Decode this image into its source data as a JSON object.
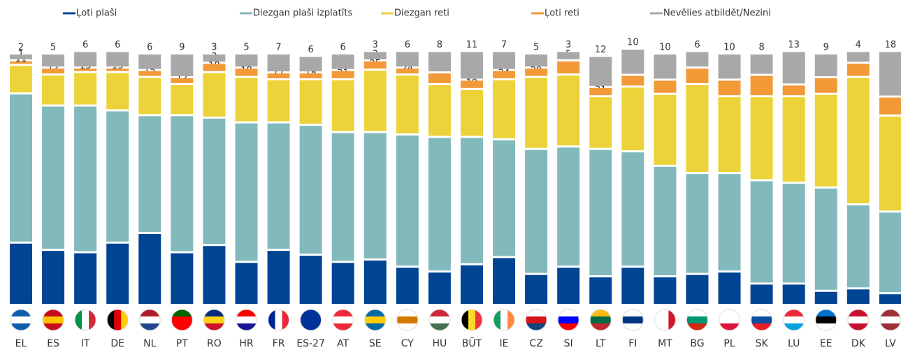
{
  "chart_data": {
    "type": "stacked_bar",
    "categories": [
      "EL",
      "ES",
      "IT",
      "DE",
      "NL",
      "PT",
      "RO",
      "HR",
      "FR",
      "ES-27",
      "AT",
      "SE",
      "CY",
      "HU",
      "BŪT",
      "IE",
      "CZ",
      "SI",
      "LT",
      "FI",
      "MT",
      "BG",
      "PL",
      "SK",
      "LU",
      "EE",
      "DK",
      "LV"
    ],
    "series": [
      {
        "name": "Ļoti plaši",
        "color": "#004494",
        "values": [
          25,
          22,
          21,
          25,
          29,
          21,
          24,
          17,
          22,
          20,
          17,
          18,
          15,
          13,
          16,
          19,
          12,
          15,
          11,
          15,
          11,
          12,
          13,
          8,
          8,
          5,
          6,
          4
        ]
      },
      {
        "name": "Diezgan plaši izplatīts",
        "color": "#82b9bd",
        "values": [
          61,
          59,
          60,
          54,
          48,
          56,
          52,
          57,
          52,
          53,
          53,
          52,
          54,
          55,
          52,
          48,
          51,
          49,
          52,
          47,
          45,
          41,
          40,
          42,
          41,
          42,
          34,
          33
        ]
      },
      {
        "name": "Diezgan reti",
        "color": "#ecd33a",
        "values": [
          11,
          12,
          13,
          15,
          15,
          12,
          18,
          18,
          17,
          18,
          21,
          25,
          24,
          21,
          19,
          24,
          29,
          29,
          21,
          26,
          29,
          36,
          31,
          34,
          35,
          38,
          52,
          39
        ]
      },
      {
        "name": "Ļoti reti",
        "color": "#f29a38",
        "values": [
          1,
          2,
          1,
          1,
          2,
          2,
          3,
          3,
          2,
          2,
          3,
          3,
          2,
          4,
          3,
          3,
          3,
          5,
          3,
          4,
          5,
          6,
          6,
          8,
          4,
          6,
          5,
          7
        ]
      },
      {
        "name": "Nevēlies atbildēt/Nezini",
        "color": "#a8a8a8",
        "values": [
          2,
          5,
          6,
          6,
          6,
          9,
          3,
          5,
          7,
          6,
          6,
          3,
          6,
          8,
          11,
          7,
          5,
          3,
          12,
          10,
          10,
          6,
          10,
          8,
          13,
          9,
          4,
          18
        ]
      }
    ]
  }
}
